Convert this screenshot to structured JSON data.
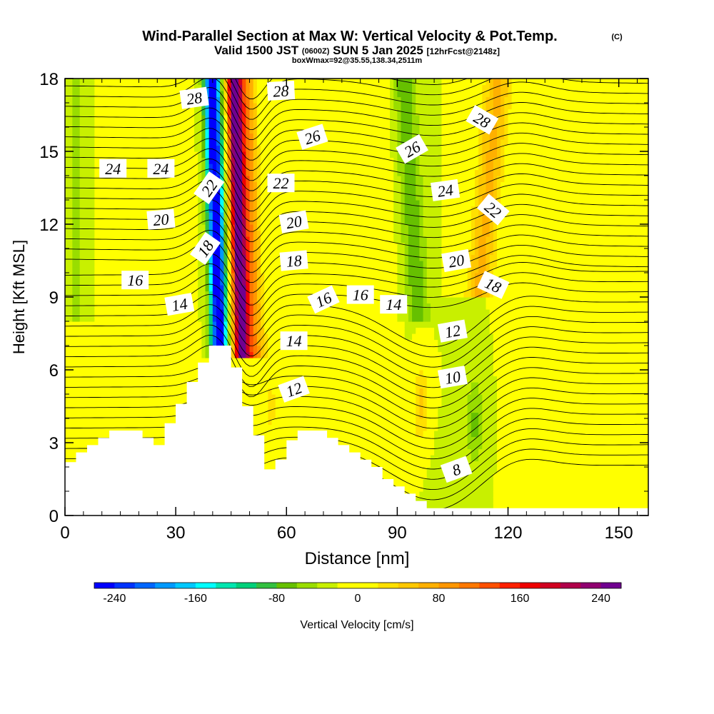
{
  "chart_data": {
    "type": "contour",
    "title": "Wind-Parallel Section at Max W: Vertical Velocity & Pot.Temp.",
    "copyright": "(C)",
    "subtitle_prefix": "Valid 1500 JST",
    "subtitle_zulu": "(0600Z)",
    "subtitle_date": "SUN 5 Jan 2025",
    "subtitle_fcst": "[12hrFcst@2148z]",
    "box_info": "boxWmax=92@35.55,138.34,2511m",
    "xlabel": "Distance [nm]",
    "ylabel": "Height [Kft MSL]",
    "xlim": [
      0,
      158
    ],
    "ylim": [
      0,
      18
    ],
    "xticks": [
      "0",
      "30",
      "60",
      "90",
      "120",
      "150"
    ],
    "xtick_values": [
      0,
      30,
      60,
      90,
      120,
      150
    ],
    "yticks": [
      "0",
      "3",
      "6",
      "9",
      "12",
      "15",
      "18"
    ],
    "ytick_values": [
      0,
      3,
      6,
      9,
      12,
      15,
      18
    ],
    "colorbar": {
      "label": "Vertical Velocity [cm/s]",
      "range": [
        -260,
        260
      ],
      "tick_labels": [
        "-240",
        "-160",
        "-80",
        "0",
        "80",
        "160",
        "240"
      ],
      "tick_values": [
        -240,
        -160,
        -80,
        0,
        80,
        160,
        240
      ],
      "colors": [
        "#0000ff",
        "#0033ff",
        "#0066ff",
        "#0099ff",
        "#00c8ff",
        "#00ffff",
        "#00e6b0",
        "#00d07a",
        "#33c040",
        "#66c000",
        "#99dd00",
        "#c8f000",
        "#ffff00",
        "#ffff00",
        "#ffe000",
        "#ffc800",
        "#ffb000",
        "#ff9600",
        "#ff7800",
        "#ff5000",
        "#ff2000",
        "#ee0000",
        "#d00020",
        "#b0004a",
        "#900070",
        "#700090"
      ]
    },
    "theta_contour_labels": [
      {
        "text": "28",
        "x": 35,
        "y": 17.2,
        "rot": -8
      },
      {
        "text": "28",
        "x": 58.5,
        "y": 17.5,
        "rot": -3
      },
      {
        "text": "26",
        "x": 67,
        "y": 15.6,
        "rot": -18
      },
      {
        "text": "26",
        "x": 94,
        "y": 15.1,
        "rot": -30
      },
      {
        "text": "28",
        "x": 113,
        "y": 16.3,
        "rot": 30
      },
      {
        "text": "24",
        "x": 13,
        "y": 14.3,
        "rot": 0
      },
      {
        "text": "24",
        "x": 26,
        "y": 14.3,
        "rot": 0
      },
      {
        "text": "22",
        "x": 39,
        "y": 13.5,
        "rot": -55
      },
      {
        "text": "22",
        "x": 58.5,
        "y": 13.7,
        "rot": 0
      },
      {
        "text": "24",
        "x": 103,
        "y": 13.4,
        "rot": -8
      },
      {
        "text": "22",
        "x": 116,
        "y": 12.6,
        "rot": 40
      },
      {
        "text": "20",
        "x": 26,
        "y": 12.2,
        "rot": -5
      },
      {
        "text": "20",
        "x": 62,
        "y": 12.1,
        "rot": -10
      },
      {
        "text": "18",
        "x": 38,
        "y": 11.0,
        "rot": -55
      },
      {
        "text": "18",
        "x": 62,
        "y": 10.5,
        "rot": -5
      },
      {
        "text": "20",
        "x": 106,
        "y": 10.5,
        "rot": -10
      },
      {
        "text": "16",
        "x": 19,
        "y": 9.7,
        "rot": 0
      },
      {
        "text": "14",
        "x": 31,
        "y": 8.7,
        "rot": -10
      },
      {
        "text": "16",
        "x": 70,
        "y": 8.9,
        "rot": -25
      },
      {
        "text": "16",
        "x": 80,
        "y": 9.1,
        "rot": 0
      },
      {
        "text": "14",
        "x": 89,
        "y": 8.7,
        "rot": 0
      },
      {
        "text": "18",
        "x": 116,
        "y": 9.5,
        "rot": 25
      },
      {
        "text": "12",
        "x": 105,
        "y": 7.6,
        "rot": -10
      },
      {
        "text": "14",
        "x": 62,
        "y": 7.2,
        "rot": 0
      },
      {
        "text": "10",
        "x": 105,
        "y": 5.7,
        "rot": -10
      },
      {
        "text": "12",
        "x": 62,
        "y": 5.2,
        "rot": -20
      },
      {
        "text": "8",
        "x": 106,
        "y": 1.9,
        "rot": -20
      }
    ],
    "terrain_kft": [
      [
        0,
        2.2
      ],
      [
        3,
        2.6
      ],
      [
        6,
        2.9
      ],
      [
        9,
        3.2
      ],
      [
        12,
        3.5
      ],
      [
        21,
        3.2
      ],
      [
        24,
        2.9
      ],
      [
        27,
        3.8
      ],
      [
        30,
        4.6
      ],
      [
        33,
        5.5
      ],
      [
        36,
        6.3
      ],
      [
        39,
        7.0
      ],
      [
        45,
        6.1
      ],
      [
        48,
        4.5
      ],
      [
        51,
        3.3
      ],
      [
        54,
        1.9
      ],
      [
        57,
        2.3
      ],
      [
        60,
        3.1
      ],
      [
        63,
        3.5
      ],
      [
        71,
        3.2
      ],
      [
        74,
        2.9
      ],
      [
        77,
        2.6
      ],
      [
        80,
        2.3
      ],
      [
        83,
        2.0
      ],
      [
        86,
        1.5
      ],
      [
        89,
        1.2
      ],
      [
        92,
        0.9
      ],
      [
        95,
        0.6
      ],
      [
        98,
        0.3
      ],
      [
        100,
        0.3
      ],
      [
        158,
        0.3
      ]
    ]
  }
}
